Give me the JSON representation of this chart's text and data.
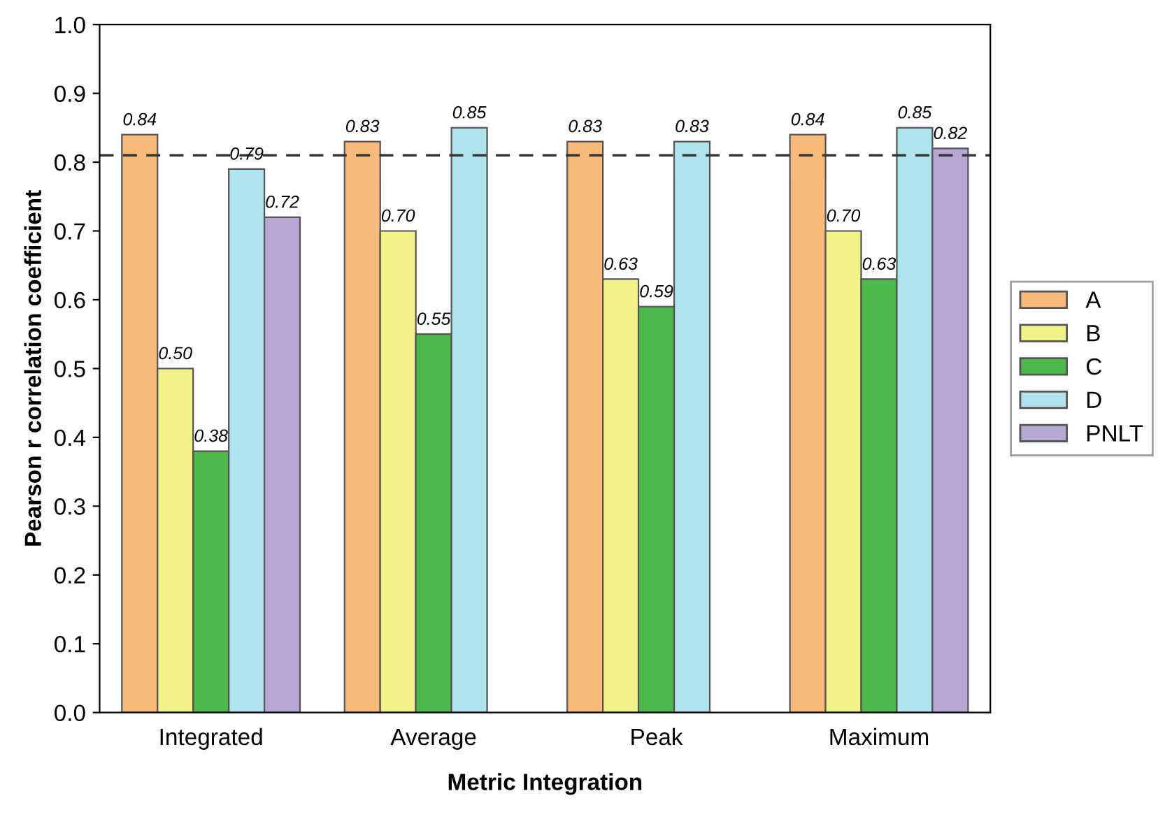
{
  "chart_data": {
    "type": "bar",
    "xlabel": "Metric Integration",
    "ylabel": "Pearson r correlation coefficient",
    "categories": [
      "Integrated",
      "Average",
      "Peak",
      "Maximum"
    ],
    "series": [
      {
        "name": "A",
        "color": "#f9b97a",
        "values": [
          0.84,
          0.83,
          0.83,
          0.84
        ],
        "value_labels": [
          "0.84",
          "0.83",
          "0.83",
          "0.84"
        ]
      },
      {
        "name": "B",
        "color": "#f2f28a",
        "values": [
          0.5,
          0.7,
          0.63,
          0.7
        ],
        "value_labels": [
          "0.50",
          "0.70",
          "0.63",
          "0.70"
        ]
      },
      {
        "name": "C",
        "color": "#4cb84c",
        "values": [
          0.38,
          0.55,
          0.59,
          0.63
        ],
        "value_labels": [
          "0.38",
          "0.55",
          "0.59",
          "0.63"
        ]
      },
      {
        "name": "D",
        "color": "#b0e4ec",
        "values": [
          0.79,
          0.85,
          0.83,
          0.85
        ],
        "value_labels": [
          "0.79",
          "0.85",
          "0.83",
          "0.85"
        ]
      },
      {
        "name": "PNLT",
        "color": "#b7a7d4",
        "values": [
          0.72,
          null,
          null,
          0.82
        ],
        "value_labels": [
          "0.72",
          null,
          null,
          "0.82"
        ]
      }
    ],
    "ylim": [
      0,
      1.0
    ],
    "yticks": [
      {
        "value": 0,
        "label": "0.0"
      },
      0.1,
      0.2,
      0.3,
      0.4,
      0.5,
      0.6,
      0.7,
      0.8,
      0.9,
      {
        "value": 1,
        "label": "1.0"
      }
    ],
    "ref_lines": [
      {
        "axis": "y",
        "value": 0.81,
        "color": "#333333",
        "line_style": "dashed"
      }
    ],
    "legend": "right",
    "grid": false
  }
}
